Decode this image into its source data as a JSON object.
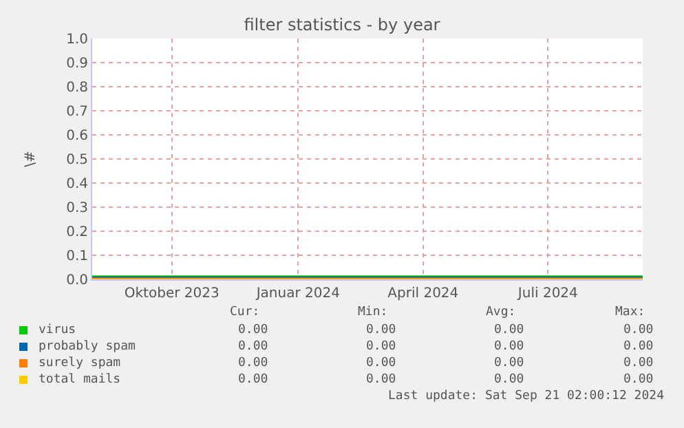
{
  "chart_data": {
    "type": "line",
    "title": "filter statistics - by year",
    "ylabel": "\\#",
    "xlim": [
      "2023-08-04",
      "2024-09-08"
    ],
    "xticks": [
      {
        "value": "2023-10-01",
        "label": "Oktober 2023"
      },
      {
        "value": "2024-01-01",
        "label": "Januar 2024"
      },
      {
        "value": "2024-04-01",
        "label": "April 2024"
      },
      {
        "value": "2024-07-01",
        "label": "Juli 2024"
      }
    ],
    "ylim": [
      0,
      1
    ],
    "yticks": [
      {
        "value": 0,
        "label": "0.0"
      },
      {
        "value": 0.1,
        "label": "0.1"
      },
      {
        "value": 0.2,
        "label": "0.2"
      },
      {
        "value": 0.3,
        "label": "0.3"
      },
      {
        "value": 0.4,
        "label": "0.4"
      },
      {
        "value": 0.5,
        "label": "0.5"
      },
      {
        "value": 0.6,
        "label": "0.6"
      },
      {
        "value": 0.7,
        "label": "0.7"
      },
      {
        "value": 0.8,
        "label": "0.8"
      },
      {
        "value": 0.9,
        "label": "0.9"
      },
      {
        "value": 1,
        "label": "1.0"
      }
    ],
    "grid": true,
    "legend": "bottom left",
    "marker": "none",
    "line_style": "solid",
    "x": [
      "2023-08-04",
      "2024-09-08"
    ],
    "series": [
      {
        "name": "virus",
        "color": "#00cc00",
        "values": [
          0,
          0
        ]
      },
      {
        "name": "probably spam",
        "color": "#0066b3",
        "values": [
          0,
          0
        ]
      },
      {
        "name": "surely spam",
        "color": "#ff8000",
        "values": [
          0,
          0
        ]
      },
      {
        "name": "total mails",
        "color": "#ffcc00",
        "values": [
          0,
          0
        ]
      }
    ],
    "annotations": [
      "Cur:",
      "Min:",
      "Avg:",
      "Max:",
      "0.00",
      "0.00",
      "0.00",
      "0.00",
      "0.00",
      "0.00",
      "0.00",
      "0.00",
      "0.00",
      "0.00",
      "0.00",
      "0.00",
      "0.00",
      "0.00",
      "0.00",
      "0.00",
      "Last update: Sat Sep 21 02:00:12 2024"
    ]
  }
}
